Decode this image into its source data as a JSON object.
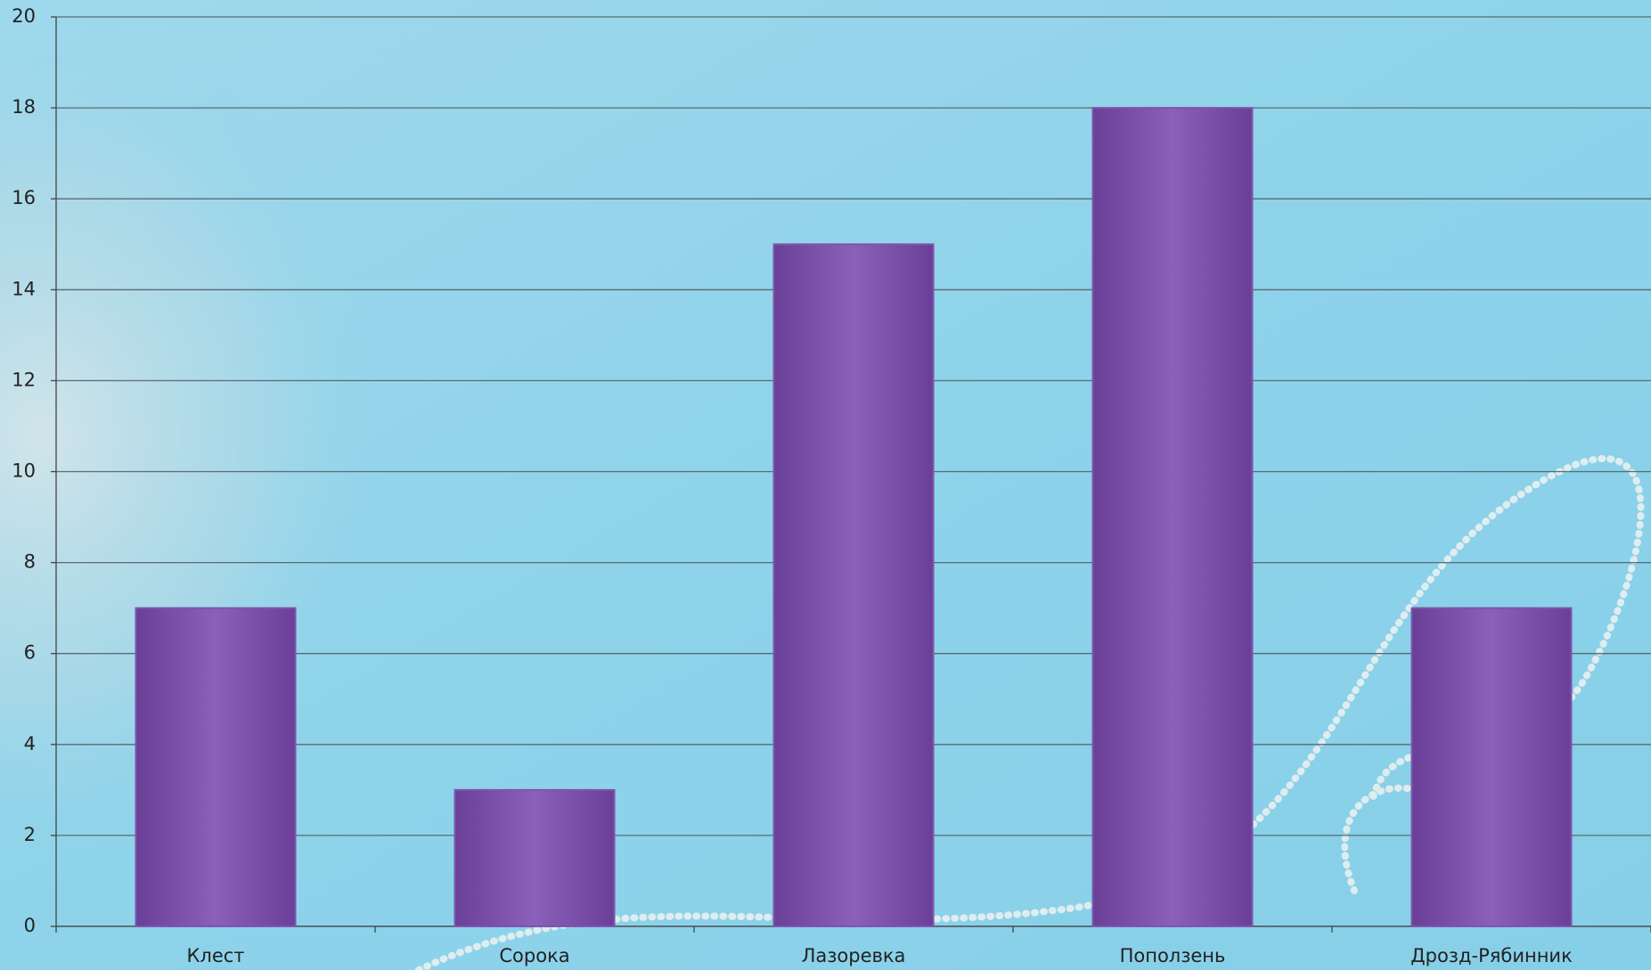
{
  "chart_data": {
    "type": "bar",
    "categories": [
      "Клест",
      "Сорока",
      "Лазоревка",
      "Поползень",
      "Дрозд-Рябинник"
    ],
    "values": [
      7,
      3,
      15,
      18,
      7
    ],
    "color": "#7d55ad",
    "ylim": [
      0,
      20
    ],
    "yticks": [
      0,
      2,
      4,
      6,
      8,
      10,
      12,
      14,
      16,
      18,
      20
    ],
    "grid": true
  }
}
